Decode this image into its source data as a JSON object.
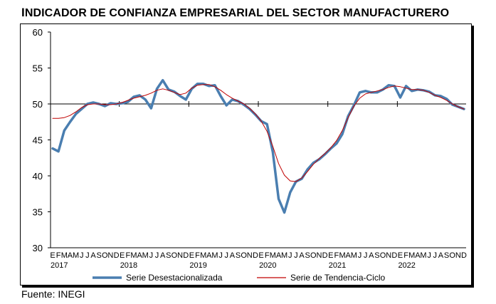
{
  "title": "Indicador de confianza empresarial del sector manufacturero",
  "source": "Fuente: INEGI",
  "chart_data": {
    "type": "line",
    "title": "Indicador de confianza empresarial del sector manufacturero",
    "ylim": [
      30,
      60
    ],
    "yticks": [
      30,
      35,
      40,
      45,
      50,
      55,
      60
    ],
    "reference_line": 50,
    "month_labels": [
      "E",
      "F",
      "M",
      "A",
      "M",
      "J",
      "J",
      "A",
      "S",
      "O",
      "N",
      "D"
    ],
    "years": [
      "2017",
      "2018",
      "2019",
      "2020",
      "2021",
      "2022"
    ],
    "x_start": "2017-01",
    "legend_position": "bottom",
    "series": [
      {
        "name": "Serie Desestacionalizada",
        "color": "#4a7eb0",
        "width": 3.5,
        "values": [
          43.8,
          43.4,
          46.3,
          47.5,
          48.6,
          49.3,
          50.0,
          50.2,
          50.0,
          49.7,
          50.1,
          50.0,
          50.1,
          50.3,
          51.0,
          51.2,
          50.6,
          49.4,
          52.1,
          53.3,
          52.0,
          51.7,
          51.1,
          50.6,
          52.1,
          52.8,
          52.8,
          52.5,
          52.6,
          51.1,
          49.8,
          50.6,
          50.4,
          49.9,
          49.3,
          48.5,
          47.6,
          47.2,
          43.3,
          36.8,
          34.9,
          37.7,
          39.2,
          39.6,
          40.9,
          41.8,
          42.3,
          43.0,
          43.8,
          44.5,
          45.8,
          48.3,
          49.8,
          51.6,
          51.8,
          51.6,
          51.6,
          52.0,
          52.6,
          52.5,
          50.9,
          52.5,
          51.8,
          52.0,
          51.9,
          51.7,
          51.2,
          51.1,
          50.7,
          49.9,
          49.6,
          49.3
        ]
      },
      {
        "name": "Serie de Tendencia-Ciclo",
        "color": "#c00000",
        "width": 1,
        "values": [
          48.0,
          48.0,
          48.1,
          48.4,
          48.9,
          49.5,
          49.9,
          50.0,
          50.0,
          49.9,
          49.9,
          50.0,
          50.2,
          50.5,
          50.8,
          51.0,
          51.2,
          51.5,
          51.9,
          52.1,
          51.9,
          51.6,
          51.3,
          51.5,
          52.2,
          52.6,
          52.7,
          52.7,
          52.4,
          51.9,
          51.3,
          50.8,
          50.4,
          50.0,
          49.4,
          48.6,
          47.6,
          46.2,
          44.1,
          41.7,
          40.1,
          39.3,
          39.2,
          39.7,
          40.6,
          41.6,
          42.4,
          43.1,
          43.9,
          44.9,
          46.3,
          48.1,
          49.7,
          50.8,
          51.4,
          51.6,
          51.8,
          52.0,
          52.3,
          52.5,
          52.4,
          52.2,
          52.0,
          52.0,
          51.9,
          51.6,
          51.2,
          50.9,
          50.5,
          50.0,
          49.6,
          49.3
        ]
      }
    ]
  }
}
